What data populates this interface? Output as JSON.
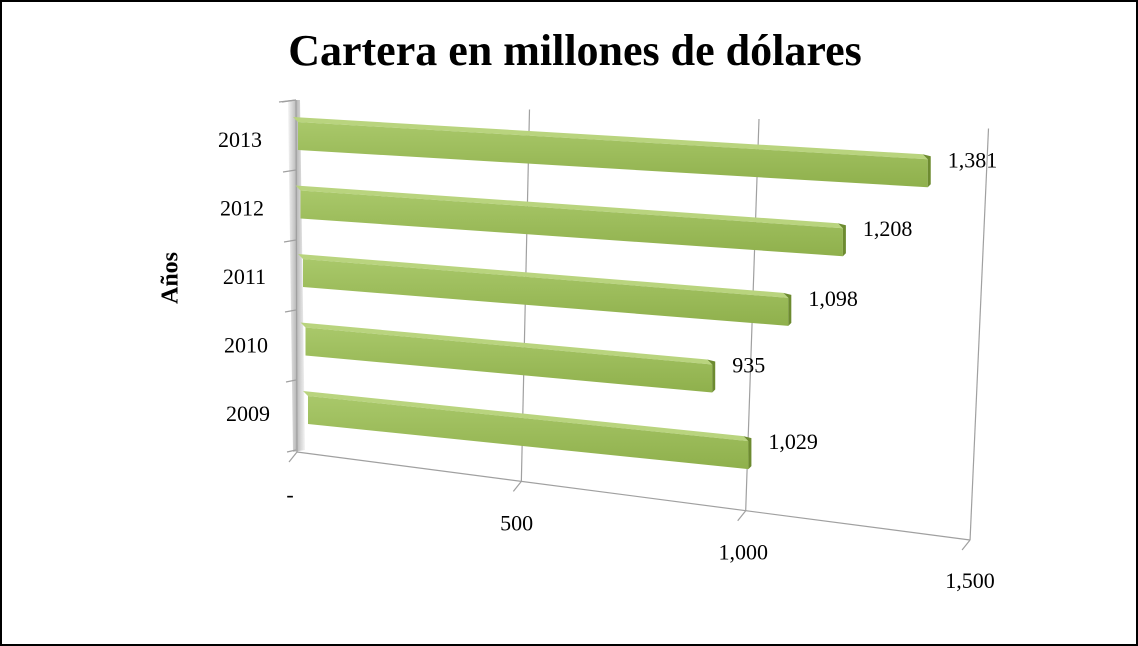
{
  "chart_data": {
    "type": "bar3d_horizontal",
    "title": "Cartera en millones de dólares",
    "y_label": "Años",
    "categories": [
      "2013",
      "2012",
      "2011",
      "2010",
      "2009"
    ],
    "values": [
      1381,
      1208,
      1098,
      935,
      1029
    ],
    "value_labels": [
      "1,381",
      "1,208",
      "1,098",
      "935",
      "1,029"
    ],
    "color": "#9bbb59",
    "xlim": [
      0,
      1500
    ],
    "xticks": [
      {
        "value": 0,
        "label": "-"
      },
      500,
      {
        "value": 1000,
        "label": "1,000"
      },
      {
        "value": 1500,
        "label": "1,500"
      }
    ],
    "grid": true
  }
}
